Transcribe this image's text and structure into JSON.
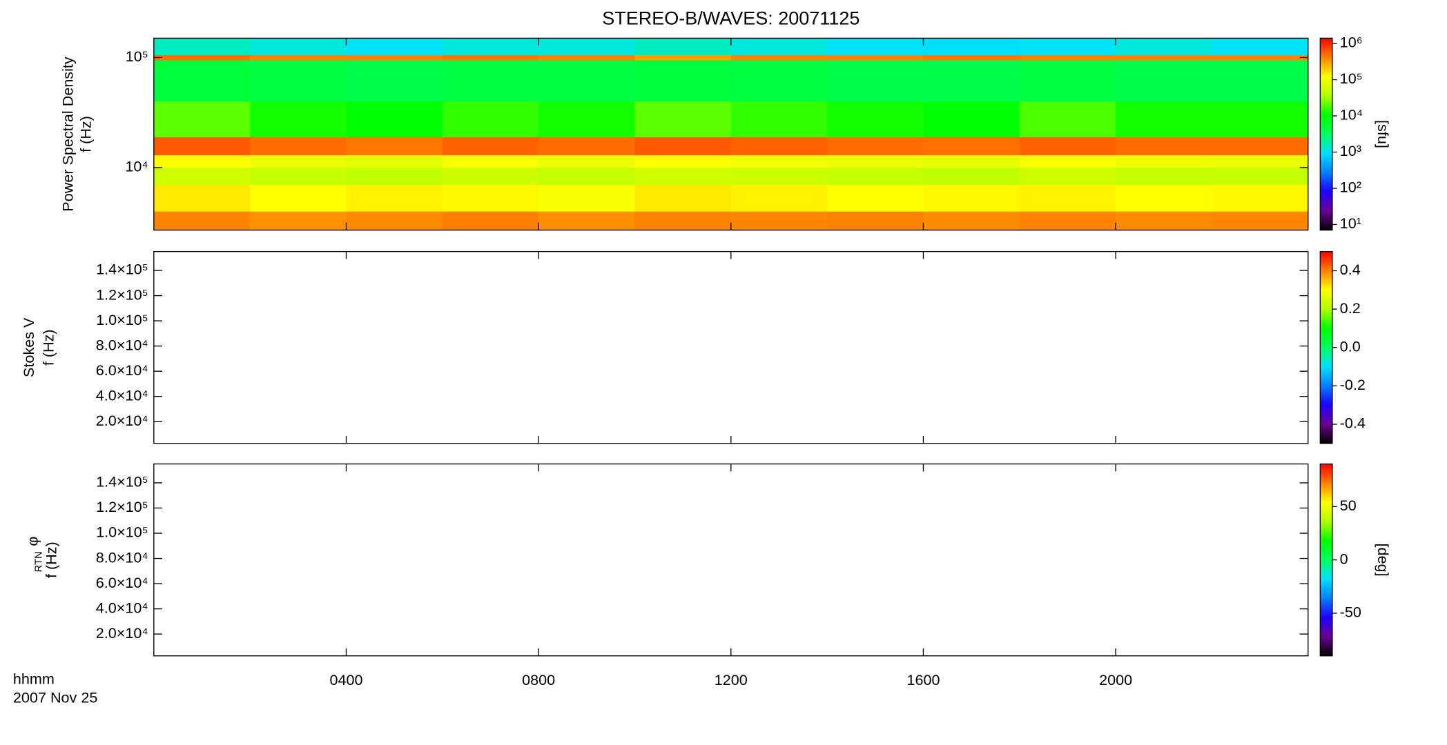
{
  "chart_data": [
    {
      "type": "heatmap",
      "title": "STEREO-B/WAVES: 20071125",
      "ylabel": [
        "Power Spectral Density",
        "f (Hz)"
      ],
      "colorbar_label": "[sfu]",
      "xlim": [
        0,
        24
      ],
      "xticks": [
        4,
        8,
        12,
        16,
        20
      ],
      "ylim": [
        2700,
        150000
      ],
      "ylog": true,
      "yticks": [
        {
          "value": 10000,
          "label": "10⁴"
        },
        {
          "value": 100000,
          "label": "10⁵"
        }
      ],
      "clim": [
        7,
        1400000
      ],
      "clog": true,
      "cticks": [
        {
          "value": 10,
          "label": "10¹"
        },
        {
          "value": 100,
          "label": "10²"
        },
        {
          "value": 1000,
          "label": "10³"
        },
        {
          "value": 10000,
          "label": "10⁴"
        },
        {
          "value": 100000,
          "label": "10⁵"
        },
        {
          "value": 1000000,
          "label": "10⁶"
        }
      ],
      "colormap": [
        "#000000",
        "#6a0090",
        "#2000ff",
        "#0080ff",
        "#00e0ff",
        "#00ff60",
        "#00ff00",
        "#b0ff00",
        "#ffff00",
        "#ff8000",
        "#ff0000"
      ],
      "x_bins": [
        0,
        2,
        4,
        6,
        8,
        10,
        12,
        14,
        16,
        18,
        20,
        22,
        24
      ],
      "y_bins": [
        2700,
        4000,
        7000,
        10000,
        13000,
        19000,
        40000,
        95000,
        106000,
        150000
      ],
      "values": [
        [
          400000,
          350000,
          380000,
          420000,
          360000,
          400000,
          390000,
          410000,
          370000,
          400000,
          380000,
          390000
        ],
        [
          150000,
          120000,
          140000,
          130000,
          110000,
          150000,
          140000,
          120000,
          130000,
          140000,
          120000,
          130000
        ],
        [
          60000,
          50000,
          45000,
          55000,
          50000,
          60000,
          55000,
          50000,
          45000,
          55000,
          50000,
          50000
        ],
        [
          120000,
          90000,
          80000,
          110000,
          90000,
          120000,
          100000,
          90000,
          85000,
          110000,
          95000,
          90000
        ],
        [
          600000,
          500000,
          450000,
          550000,
          500000,
          600000,
          550000,
          500000,
          480000,
          550000,
          500000,
          500000
        ],
        [
          20000,
          12000,
          10000,
          15000,
          12000,
          20000,
          15000,
          12000,
          10000,
          18000,
          12000,
          12000
        ],
        [
          5000,
          4500,
          4000,
          4500,
          4500,
          5000,
          4500,
          4000,
          4000,
          4500,
          4000,
          4000
        ],
        [
          500000,
          400000,
          400000,
          450000,
          400000,
          300000,
          400000,
          400000,
          450000,
          400000,
          400000,
          400000
        ],
        [
          1500,
          1200,
          1000,
          1200,
          1200,
          1500,
          1200,
          1000,
          900,
          1000,
          1200,
          1000
        ]
      ]
    },
    {
      "type": "heatmap",
      "ylabel": [
        "Stokes V",
        "f (Hz)"
      ],
      "xlim": [
        0,
        24
      ],
      "xticks": [
        4,
        8,
        12,
        16,
        20
      ],
      "ylim": [
        2700,
        155000
      ],
      "yticks": [
        {
          "value": 20000,
          "label": "2.0×10⁴"
        },
        {
          "value": 40000,
          "label": "4.0×10⁴"
        },
        {
          "value": 60000,
          "label": "6.0×10⁴"
        },
        {
          "value": 80000,
          "label": "8.0×10⁴"
        },
        {
          "value": 100000,
          "label": "1.0×10⁵"
        },
        {
          "value": 120000,
          "label": "1.2×10⁵"
        },
        {
          "value": 140000,
          "label": "1.4×10⁵"
        }
      ],
      "clim": [
        -0.5,
        0.5
      ],
      "cticks": [
        -0.4,
        -0.2,
        {
          "value": 0,
          "label": "0.0"
        },
        0.2,
        0.4
      ],
      "colormap": [
        "#000000",
        "#6a0090",
        "#2000ff",
        "#0080ff",
        "#00e0ff",
        "#00ff60",
        "#00ff00",
        "#b0ff00",
        "#ffff00",
        "#ff8000",
        "#ff0000"
      ]
    },
    {
      "type": "heatmap",
      "ylabel_symbol": "φ",
      "ylabel_subscript": "RTN",
      "ylabel": [
        "f (Hz)"
      ],
      "colorbar_label": "[deg]",
      "xlabel": "hhmm",
      "date_label": "2007 Nov 25",
      "xlim": [
        0,
        24
      ],
      "xticks": [
        {
          "value": 4,
          "label": "0400"
        },
        {
          "value": 8,
          "label": "0800"
        },
        {
          "value": 12,
          "label": "1200"
        },
        {
          "value": 16,
          "label": "1600"
        },
        {
          "value": 20,
          "label": "2000"
        }
      ],
      "ylim": [
        2700,
        155000
      ],
      "yticks": [
        {
          "value": 20000,
          "label": "2.0×10⁴"
        },
        {
          "value": 40000,
          "label": "4.0×10⁴"
        },
        {
          "value": 60000,
          "label": "6.0×10⁴"
        },
        {
          "value": 80000,
          "label": "8.0×10⁴"
        },
        {
          "value": 100000,
          "label": "1.0×10⁵"
        },
        {
          "value": 120000,
          "label": "1.2×10⁵"
        },
        {
          "value": 140000,
          "label": "1.4×10⁵"
        }
      ],
      "clim": [
        -90,
        90
      ],
      "cticks": [
        -50,
        0,
        50
      ],
      "colormap": [
        "#000000",
        "#6a0090",
        "#2000ff",
        "#0080ff",
        "#00e0ff",
        "#00ff60",
        "#00ff00",
        "#b0ff00",
        "#ffff00",
        "#ff8000",
        "#ff0000"
      ]
    }
  ]
}
